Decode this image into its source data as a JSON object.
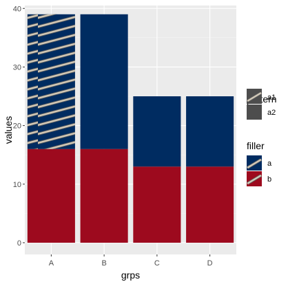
{
  "chart_data": {
    "type": "bar",
    "stacked": true,
    "categories": [
      "A",
      "B",
      "C",
      "D"
    ],
    "series": [
      {
        "name": "a",
        "values": [
          23,
          23,
          12,
          12
        ]
      },
      {
        "name": "b",
        "values": [
          16,
          16,
          13,
          13
        ]
      }
    ],
    "patterned_segments": [
      {
        "category": "A",
        "series": "a"
      }
    ],
    "xlabel": "grps",
    "ylabel": "values",
    "ylim": [
      -2,
      40.5
    ],
    "yticks": [
      0,
      10,
      20,
      30,
      40
    ],
    "grid": true,
    "legends": [
      {
        "title": "pattern",
        "items": [
          "a1",
          "a2"
        ]
      },
      {
        "title": "filler",
        "items": [
          "a",
          "b"
        ]
      }
    ],
    "legend_position": "right"
  },
  "colors": {
    "a": "#002c61",
    "b": "#9d0a1e",
    "panel": "#ebebeb",
    "grid_major": "#ffffff",
    "pattern_key": "#4d4d4d",
    "stripe": "#c9c0b0"
  }
}
